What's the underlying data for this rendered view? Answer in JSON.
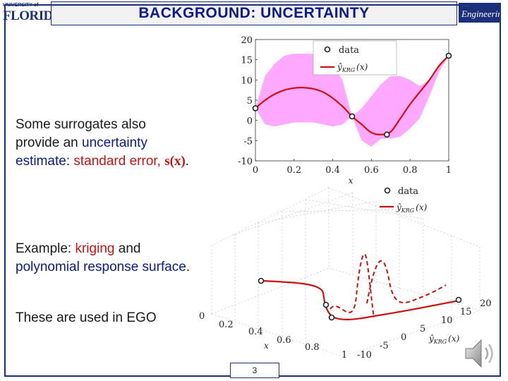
{
  "header": {
    "title": "BACKGROUND: UNCERTAINTY",
    "left_logo_top": "UNIVERSITY of",
    "left_logo_main": "FLORIDA",
    "right_logo_small": "· · · ·",
    "right_logo_main": "Engineering"
  },
  "body": {
    "p1": {
      "before": "Some surrogates also provide an ",
      "em1": "uncertainty estimate",
      "mid": ": ",
      "em2": "standard error, ",
      "math": "s(x)",
      "after": "."
    },
    "p2": {
      "before": "Example: ",
      "em1": "kriging",
      "mid": " and ",
      "em2": "polynomial response surface",
      "after": "."
    },
    "p3": "These are used in EGO"
  },
  "top_chart": {
    "x_label": "x",
    "x_ticks": [
      "0",
      "0.2",
      "0.4",
      "0.6",
      "0.8",
      "1"
    ],
    "y_ticks": [
      "20",
      "15",
      "10",
      "5",
      "0",
      "-5",
      "-10"
    ],
    "legend_data": "data",
    "legend_fit_main": "ŷ",
    "legend_fit_sub": "KRG",
    "legend_fit_arg": "(x)"
  },
  "bottom_chart": {
    "legend_data": "data",
    "legend_fit_main": "ŷ",
    "legend_fit_sub": "KRG",
    "legend_fit_arg": "(x)",
    "x_label": "x",
    "x_ticks": [
      "0",
      "0.2",
      "0.4",
      "0.6",
      "0.8",
      "1"
    ],
    "y_ticks": [
      "-10",
      "-5",
      "0",
      "5",
      "10",
      "15",
      "20"
    ],
    "y_axis_label_main": "ŷ",
    "y_axis_label_sub": "KRG",
    "y_axis_label_arg": "(x)"
  },
  "colors": {
    "title_text": "#0a1a8c",
    "accent_red": "#cc1111",
    "band_fill": "#ff99ff",
    "frame": "#1b2f7a"
  },
  "footer": {
    "page_number": "3"
  },
  "chart_data": {
    "type": "line",
    "x": [
      0,
      0.05,
      0.1,
      0.15,
      0.2,
      0.25,
      0.3,
      0.35,
      0.4,
      0.45,
      0.5,
      0.55,
      0.6,
      0.65,
      0.7,
      0.75,
      0.8,
      0.85,
      0.9,
      0.95,
      1
    ],
    "series": [
      {
        "values": [
          3,
          5,
          6.5,
          7.5,
          8.0,
          8.1,
          7.8,
          7.0,
          5.5,
          3.5,
          1.0,
          -1.0,
          -3.0,
          -3.5,
          -2.8,
          0.5,
          4.0,
          7.0,
          10.0,
          13.5,
          16
        ]
      }
    ],
    "data_points": [
      {
        "x": 0,
        "y": 3
      },
      {
        "x": 0.5,
        "y": 1
      },
      {
        "x": 0.68,
        "y": -3.5
      },
      {
        "x": 1,
        "y": 16
      }
    ],
    "band_upper": [
      3,
      11,
      14,
      16,
      16.5,
      16.5,
      16.5,
      16,
      14,
      10,
      1.0,
      3,
      6,
      9,
      11,
      11,
      10,
      8.5,
      10,
      13.5,
      16
    ],
    "band_lower": [
      3,
      -1,
      -1.5,
      -1.0,
      -0.5,
      -0.5,
      -0.5,
      -1.0,
      -1.5,
      -1.0,
      1.0,
      -5,
      -6.5,
      -4.5,
      -4.5,
      -4,
      -2,
      0.5,
      6,
      12,
      16
    ],
    "xlim": [
      0,
      1
    ],
    "ylim": [
      -10,
      20
    ],
    "grid": false,
    "legend": "top-right"
  }
}
